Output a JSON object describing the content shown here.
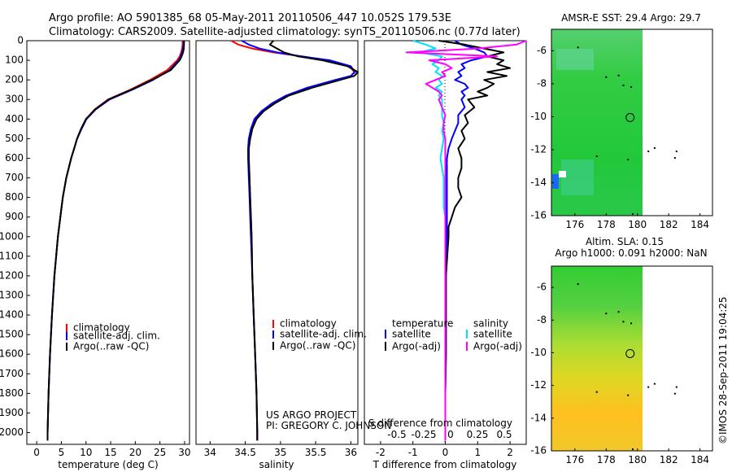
{
  "header": {
    "line1": "Argo profile: AO 5901385_68 05-May-2011 20110506_447 10.052S 179.53E",
    "line2": "Climatology: CARS2009. Satellite-adjusted climatology: synTS_20110506.nc (0.77d later)"
  },
  "colors": {
    "climatology": "#ff0000",
    "satellite": "#0000ff",
    "argo": "#000000",
    "t_satellite": "#0000ff",
    "s_satellite": "#00e0ff",
    "s_argo": "#ff00ff"
  },
  "depth_axis": {
    "ylim": [
      0,
      2060
    ],
    "ticks": [
      "0",
      "100",
      "200",
      "300",
      "400",
      "500",
      "600",
      "700",
      "800",
      "900",
      "1000",
      "1100",
      "1200",
      "1300",
      "1400",
      "1500",
      "1600",
      "1700",
      "1800",
      "1900",
      "2000"
    ]
  },
  "chart_data": [
    {
      "id": "temperature",
      "type": "line",
      "xlabel": "temperature (deg C)",
      "xlim": [
        -2,
        31
      ],
      "xticks": [
        "0",
        "5",
        "10",
        "15",
        "20",
        "25",
        "30"
      ],
      "depth": [
        0,
        20,
        40,
        60,
        80,
        100,
        150,
        200,
        250,
        300,
        350,
        400,
        450,
        500,
        550,
        600,
        700,
        800,
        900,
        1000,
        1200,
        1400,
        1600,
        1800,
        2000,
        2040
      ],
      "series": [
        {
          "name": "climatology",
          "color_key": "climatology",
          "values": [
            29.6,
            29.6,
            29.5,
            29.3,
            29.0,
            28.5,
            26.5,
            23.0,
            19.0,
            14.5,
            11.8,
            10.0,
            9.0,
            8.2,
            7.6,
            7.0,
            6.0,
            5.3,
            4.8,
            4.3,
            3.6,
            3.1,
            2.7,
            2.4,
            2.2,
            2.2
          ]
        },
        {
          "name": "satellite-adj. clim.",
          "color_key": "satellite",
          "values": [
            29.8,
            29.8,
            29.7,
            29.5,
            29.2,
            28.8,
            27.0,
            23.6,
            19.4,
            14.8,
            12.0,
            10.1,
            9.1,
            8.2,
            7.6,
            7.0,
            6.0,
            5.3,
            4.8,
            4.3,
            3.6,
            3.1,
            2.7,
            2.4,
            2.2,
            2.2
          ]
        },
        {
          "name": "Argo(..raw -QC)",
          "color_key": "argo",
          "values": [
            29.9,
            29.9,
            29.85,
            29.7,
            29.4,
            29.0,
            27.2,
            23.4,
            19.2,
            14.6,
            11.9,
            10.0,
            9.0,
            8.2,
            7.6,
            7.0,
            6.0,
            5.3,
            4.8,
            4.3,
            3.6,
            3.1,
            2.7,
            2.4,
            2.2,
            2.2
          ]
        }
      ],
      "legend": [
        "climatology",
        "satellite-adj. clim.",
        "Argo(..raw -QC)"
      ]
    },
    {
      "id": "salinity",
      "type": "line",
      "xlabel": "salinity",
      "xlim": [
        33.8,
        36.1
      ],
      "xticks": [
        "34",
        "34.5",
        "35",
        "35.5",
        "36"
      ],
      "depth": [
        0,
        20,
        40,
        60,
        80,
        100,
        130,
        160,
        180,
        200,
        240,
        280,
        320,
        360,
        400,
        450,
        500,
        550,
        600,
        700,
        800,
        900,
        1000,
        1200,
        1400,
        1600,
        1800,
        2000,
        2040
      ],
      "series": [
        {
          "name": "climatology",
          "color_key": "climatology",
          "values": [
            34.3,
            34.4,
            34.6,
            34.9,
            35.3,
            35.7,
            35.98,
            36.05,
            36.0,
            35.8,
            35.4,
            35.1,
            34.9,
            34.75,
            34.65,
            34.6,
            34.57,
            34.55,
            34.55,
            34.56,
            34.57,
            34.58,
            34.59,
            34.6,
            34.62,
            34.64,
            34.66,
            34.67,
            34.67
          ]
        },
        {
          "name": "satellite-adj. clim.",
          "color_key": "satellite",
          "values": [
            34.45,
            34.55,
            34.7,
            34.95,
            35.3,
            35.7,
            36.0,
            36.06,
            36.0,
            35.78,
            35.38,
            35.08,
            34.88,
            34.73,
            34.63,
            34.58,
            34.55,
            34.54,
            34.54,
            34.55,
            34.56,
            34.57,
            34.58,
            34.6,
            34.62,
            34.64,
            34.66,
            34.67,
            34.67
          ]
        },
        {
          "name": "Argo(..raw -QC)",
          "color_key": "argo",
          "values": [
            34.9,
            34.85,
            34.95,
            35.05,
            35.25,
            35.6,
            35.95,
            36.1,
            36.05,
            35.85,
            35.45,
            35.12,
            34.92,
            34.76,
            34.66,
            34.6,
            34.57,
            34.55,
            34.55,
            34.56,
            34.57,
            34.58,
            34.59,
            34.6,
            34.62,
            34.64,
            34.66,
            34.67,
            34.67
          ]
        }
      ],
      "legend": [
        "climatology",
        "satellite-adj. clim.",
        "Argo(..raw -QC)"
      ],
      "annotation": [
        "US ARGO PROJECT",
        "PI: GREGORY C. JOHNSON"
      ]
    },
    {
      "id": "difference",
      "type": "line",
      "xlabel": "T difference from climatology",
      "xlabel_top": "S difference from climatology",
      "xlim": [
        -2.5,
        2.5
      ],
      "xticks": [
        "-2",
        "-1",
        "0",
        "1",
        "2"
      ],
      "xticks_s": [
        "-0.5",
        "-0.25",
        "0",
        "0.25",
        "0.5"
      ],
      "depth": [
        0,
        20,
        40,
        60,
        80,
        100,
        120,
        140,
        160,
        180,
        200,
        220,
        240,
        260,
        280,
        300,
        340,
        380,
        420,
        460,
        500,
        550,
        600,
        650,
        700,
        750,
        800,
        850,
        900,
        950,
        1000,
        1200,
        1400,
        1600,
        1800,
        2000,
        2040
      ],
      "series": [
        {
          "name": "temperature satellite",
          "color_key": "t_satellite",
          "values": [
            0.3,
            0.5,
            0.9,
            1.2,
            1.3,
            0.8,
            0.5,
            0.6,
            0.4,
            0.5,
            0.3,
            0.6,
            0.7,
            0.5,
            0.6,
            0.5,
            0.6,
            0.4,
            0.4,
            0.3,
            0.2,
            0.1,
            0.05,
            0.05,
            0.05,
            0.05,
            0.05,
            0.05,
            0.05,
            0.05,
            0.05,
            0.02,
            0.02,
            0.02,
            0.0,
            0.0,
            0.0
          ]
        },
        {
          "name": "temperature Argo(-adj)",
          "color_key": "argo",
          "values": [
            -0.2,
            0.6,
            1.2,
            1.8,
            1.3,
            1.8,
            1.6,
            2.0,
            1.3,
            1.9,
            1.2,
            1.5,
            1.3,
            1.0,
            1.3,
            0.7,
            0.9,
            0.6,
            0.7,
            0.5,
            0.6,
            0.4,
            0.5,
            0.5,
            0.4,
            0.4,
            0.5,
            0.3,
            0.2,
            0.1,
            0.1,
            0.02,
            0.02,
            0.02,
            0.0,
            0.0,
            0.0
          ]
        },
        {
          "name": "salinity satellite",
          "color_key": "s_satellite",
          "values": [
            -1.0,
            -0.6,
            -0.3,
            -0.8,
            -0.1,
            -0.2,
            -0.4,
            -0.2,
            -0.3,
            -0.1,
            -0.2,
            -0.1,
            -0.3,
            -0.1,
            -0.2,
            -0.1,
            -0.1,
            -0.1,
            -0.05,
            -0.1,
            -0.05,
            -0.1,
            -0.15,
            -0.1,
            -0.05,
            -0.05,
            -0.05,
            -0.05,
            0.0,
            0.0,
            0.0,
            0.0,
            0.0,
            0.0,
            0.0,
            0.0,
            0.0
          ]
        },
        {
          "name": "salinity Argo(-adj)",
          "color_key": "s_argo",
          "values": [
            2.5,
            2.2,
            1.0,
            -1.2,
            1.6,
            -0.5,
            0.0,
            0.2,
            -0.1,
            0.0,
            -0.3,
            -0.6,
            -0.4,
            -0.2,
            -0.1,
            -0.2,
            -0.1,
            0.0,
            -0.05,
            -0.05,
            0.0,
            0.0,
            0.0,
            0.0,
            0.0,
            0.0,
            0.0,
            0.0,
            0.0,
            0.0,
            0.0,
            0.0,
            0.0,
            0.0,
            0.0,
            0.0,
            0.0
          ]
        }
      ],
      "legend_groups": [
        {
          "title": "temperature",
          "items": [
            "satellite",
            "Argo(-adj)"
          ],
          "color_keys": [
            "t_satellite",
            "argo"
          ]
        },
        {
          "title": "salinity",
          "items": [
            "satellite",
            "Argo(-adj)"
          ],
          "color_keys": [
            "s_satellite",
            "s_argo"
          ]
        }
      ]
    }
  ],
  "maps": [
    {
      "id": "sst",
      "title": "AMSR-E SST: 29.4  Argo: 29.7",
      "xticks": [
        "176",
        "178",
        "180",
        "182",
        "184"
      ],
      "yticks": [
        "-6",
        "-8",
        "-10",
        "-12",
        "-14",
        "-16"
      ],
      "xlim": [
        174.5,
        184.8
      ],
      "ylim": [
        -16,
        -4.7
      ],
      "float_position": [
        179.53,
        -10.05
      ]
    },
    {
      "id": "sla",
      "title_line1": "Altim. SLA: 0.15",
      "title_line2": "Argo h1000: 0.091 h2000: NaN",
      "xticks": [
        "176",
        "178",
        "180",
        "182",
        "184"
      ],
      "yticks": [
        "-6",
        "-8",
        "-10",
        "-12",
        "-14",
        "-16"
      ],
      "xlim": [
        174.5,
        184.8
      ],
      "ylim": [
        -16,
        -4.7
      ],
      "float_position": [
        179.53,
        -10.05
      ]
    }
  ],
  "credit": "©IMOS 28-Sep-2011 19:04:25"
}
